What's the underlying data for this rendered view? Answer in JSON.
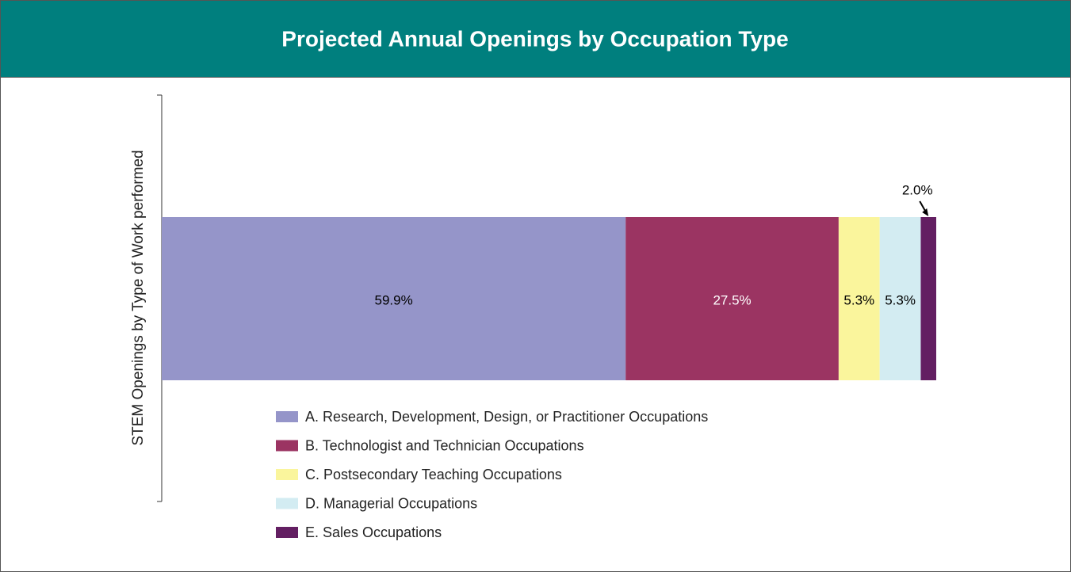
{
  "chart_data": {
    "type": "stacked_bar",
    "orientation": "horizontal",
    "title": "Projected Annual Openings by Occupation Type",
    "y_label": "STEM Openings by Type of Work performed",
    "series": [
      {
        "name": "A. Research, Development, Design, or Practitioner Occupations",
        "color": "#9595c9",
        "label_color": "#000000",
        "values": [
          59.9
        ],
        "value_labels": [
          "59.9%"
        ]
      },
      {
        "name": "B. Technologist and Technician Occupations",
        "color": "#9b3462",
        "label_color": "#ffffff",
        "values": [
          27.5
        ],
        "value_labels": [
          "27.5%"
        ]
      },
      {
        "name": "C. Postsecondary Teaching Occupations",
        "color": "#faf59c",
        "label_color": "#000000",
        "values": [
          5.3
        ],
        "value_labels": [
          "5.3%"
        ]
      },
      {
        "name": "D. Managerial Occupations",
        "color": "#d3ecf2",
        "label_color": "#000000",
        "values": [
          5.3
        ],
        "value_labels": [
          "5.3%"
        ]
      },
      {
        "name": "E. Sales Occupations",
        "color": "#631f62",
        "label_color": "#000000",
        "values": [
          2.0
        ],
        "value_labels": [
          "2.0%"
        ]
      }
    ]
  }
}
